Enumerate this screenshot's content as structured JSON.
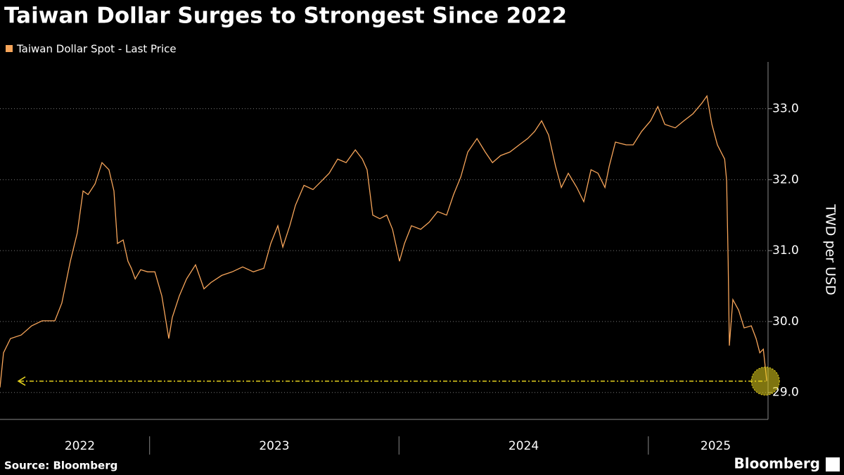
{
  "chart_data": {
    "type": "line",
    "title": "Taiwan Dollar Surges to Strongest Since 2022",
    "y_label": "TWD per USD",
    "source": "Source: Bloomberg",
    "brand": "Bloomberg",
    "series": [
      {
        "name": "Taiwan Dollar Spot - Last Price",
        "color": "#f7a55a",
        "x": [
          2022.4,
          2022.414,
          2022.442,
          2022.485,
          2022.527,
          2022.569,
          2022.62,
          2022.648,
          2022.682,
          2022.71,
          2022.733,
          2022.753,
          2022.781,
          2022.809,
          2022.837,
          2022.857,
          2022.871,
          2022.894,
          2022.913,
          2022.927,
          2022.942,
          2022.964,
          2022.992,
          2023.021,
          2023.049,
          2023.077,
          2023.091,
          2023.119,
          2023.148,
          2023.184,
          2023.218,
          2023.246,
          2023.289,
          2023.331,
          2023.373,
          2023.416,
          2023.458,
          2023.486,
          2023.514,
          2023.534,
          2023.562,
          2023.585,
          2023.619,
          2023.655,
          2023.692,
          2023.72,
          2023.754,
          2023.788,
          2023.825,
          2023.853,
          2023.872,
          2023.895,
          2023.923,
          2023.951,
          2023.974,
          2024.002,
          2024.022,
          2024.05,
          2024.087,
          2024.121,
          2024.155,
          2024.191,
          2024.219,
          2024.248,
          2024.276,
          2024.313,
          2024.346,
          2024.375,
          2024.408,
          2024.445,
          2024.482,
          2024.516,
          2024.544,
          2024.572,
          2024.6,
          2024.628,
          2024.651,
          2024.679,
          2024.713,
          2024.741,
          2024.77,
          2024.798,
          2024.826,
          2024.843,
          2024.868,
          2024.911,
          2024.939,
          2024.973,
          2025.009,
          2025.038,
          2025.066,
          2025.108,
          2025.142,
          2025.179,
          2025.215,
          2025.235,
          2025.255,
          2025.277,
          2025.306,
          2025.314,
          2025.32,
          2025.325,
          2025.339,
          2025.362,
          2025.384,
          2025.413,
          2025.432,
          2025.447,
          2025.461,
          2025.475
        ],
        "values": [
          29.07,
          29.56,
          29.76,
          29.81,
          29.94,
          30.01,
          30.01,
          30.26,
          30.85,
          31.25,
          31.84,
          31.79,
          31.94,
          32.24,
          32.14,
          31.84,
          31.1,
          31.15,
          30.85,
          30.75,
          30.6,
          30.73,
          30.7,
          30.7,
          30.36,
          29.76,
          30.06,
          30.36,
          30.6,
          30.8,
          30.46,
          30.55,
          30.65,
          30.7,
          30.77,
          30.7,
          30.75,
          31.1,
          31.35,
          31.05,
          31.35,
          31.64,
          31.92,
          31.86,
          31.99,
          32.09,
          32.29,
          32.24,
          32.42,
          32.29,
          32.14,
          31.5,
          31.45,
          31.5,
          31.3,
          30.85,
          31.1,
          31.35,
          31.3,
          31.4,
          31.55,
          31.5,
          31.79,
          32.04,
          32.39,
          32.58,
          32.39,
          32.24,
          32.34,
          32.39,
          32.49,
          32.58,
          32.68,
          32.83,
          32.63,
          32.19,
          31.89,
          32.09,
          31.89,
          31.69,
          32.14,
          32.09,
          31.89,
          32.19,
          32.53,
          32.49,
          32.49,
          32.68,
          32.83,
          33.03,
          32.78,
          32.73,
          32.83,
          32.93,
          33.08,
          33.18,
          32.78,
          32.49,
          32.29,
          31.99,
          30.85,
          29.66,
          30.31,
          30.16,
          29.91,
          29.94,
          29.76,
          29.56,
          29.61,
          29.16
        ]
      }
    ],
    "xlim": [
      2022.4,
      2025.48
    ],
    "xticks": [
      {
        "value": 2022.72,
        "label": "2022"
      },
      {
        "value": 2023.5,
        "label": "2023"
      },
      {
        "value": 2024.5,
        "label": "2024"
      },
      {
        "value": 2025.27,
        "label": "2025"
      }
    ],
    "x_dividers": [
      2023,
      2024,
      2025
    ],
    "ylim": [
      28.62,
      33.66
    ],
    "yticks": [
      {
        "value": 29,
        "label": "29.0"
      },
      {
        "value": 30,
        "label": "30.0"
      },
      {
        "value": 31,
        "label": "31.0"
      },
      {
        "value": 32,
        "label": "32.0"
      },
      {
        "value": 33,
        "label": "33.0"
      }
    ],
    "grid": true,
    "annotation_color": "#e6d31e"
  }
}
